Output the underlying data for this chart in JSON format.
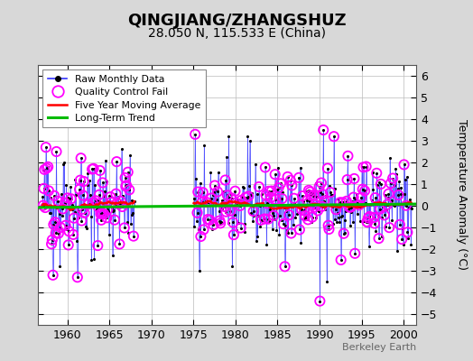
{
  "title": "QINGJIANG/ZHANGSHUZ",
  "subtitle": "28.050 N, 115.533 E (China)",
  "ylabel": "Temperature Anomaly (°C)",
  "watermark": "Berkeley Earth",
  "ylim": [
    -5.5,
    6.5
  ],
  "yticks": [
    -5,
    -4,
    -3,
    -2,
    -1,
    0,
    1,
    2,
    3,
    4,
    5,
    6
  ],
  "xlim": [
    1956.5,
    2001.5
  ],
  "xticks": [
    1960,
    1965,
    1970,
    1975,
    1980,
    1985,
    1990,
    1995,
    2000
  ],
  "bg_color": "#d8d8d8",
  "plot_bg_color": "#ffffff",
  "line_color": "#3333ff",
  "marker_color": "#000000",
  "qc_color": "#ff00ff",
  "ma_color": "#ff0000",
  "trend_color": "#00bb00",
  "legend_loc": "upper left"
}
